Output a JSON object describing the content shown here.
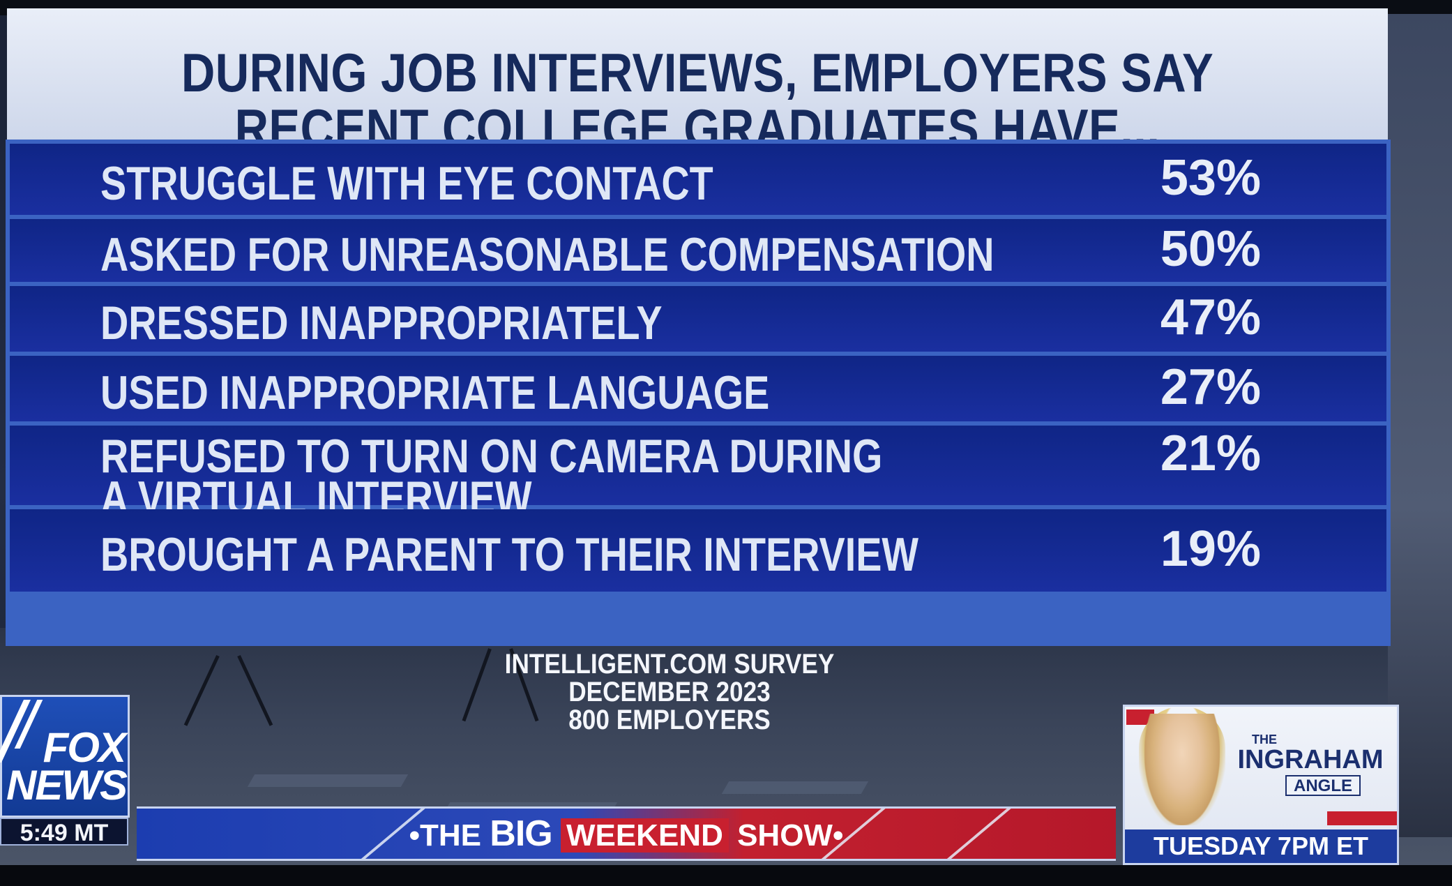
{
  "chart_data": {
    "type": "table",
    "title": "DURING JOB INTERVIEWS, EMPLOYERS SAY RECENT COLLEGE GRADUATES HAVE...",
    "rows": [
      {
        "label": "STRUGGLE WITH EYE CONTACT",
        "value": 53,
        "display": "53%"
      },
      {
        "label": "ASKED FOR UNREASONABLE COMPENSATION",
        "value": 50,
        "display": "50%"
      },
      {
        "label": "DRESSED INAPPROPRIATELY",
        "value": 47,
        "display": "47%"
      },
      {
        "label": "USED INAPPROPRIATE LANGUAGE",
        "value": 27,
        "display": "27%"
      },
      {
        "label": "REFUSED TO TURN ON CAMERA DURING A VIRTUAL INTERVIEW",
        "label_lines": [
          "REFUSED TO TURN ON CAMERA DURING",
          "A VIRTUAL INTERVIEW"
        ],
        "value": 21,
        "display": "21%"
      },
      {
        "label": "BROUGHT A PARENT TO THEIR INTERVIEW",
        "value": 19,
        "display": "19%"
      }
    ]
  },
  "header": {
    "title_line1": "DURING JOB INTERVIEWS, EMPLOYERS SAY",
    "title_line2": "RECENT COLLEGE GRADUATES HAVE..."
  },
  "source": {
    "line1": "INTELLIGENT.COM SURVEY",
    "line2": "DECEMBER 2023",
    "line3": "800 EMPLOYERS"
  },
  "network": {
    "logo_line1": "FOX",
    "logo_line2": "NEWS",
    "clock": "5:49 MT"
  },
  "banner": {
    "prefix": "•THE ",
    "big": "BIG",
    "weekend": "WEEKEND",
    "show": " SHOW•"
  },
  "promo": {
    "the": "THE",
    "show_name": "INGRAHAM",
    "angle": "ANGLE",
    "time": "TUESDAY 7PM ET"
  },
  "colors": {
    "row_fill": "#1a2fa0",
    "row_divider": "#3b63c2",
    "header_bg": "#dbe2f0",
    "header_text": "#162a5c",
    "accent_red": "#c8202f"
  }
}
